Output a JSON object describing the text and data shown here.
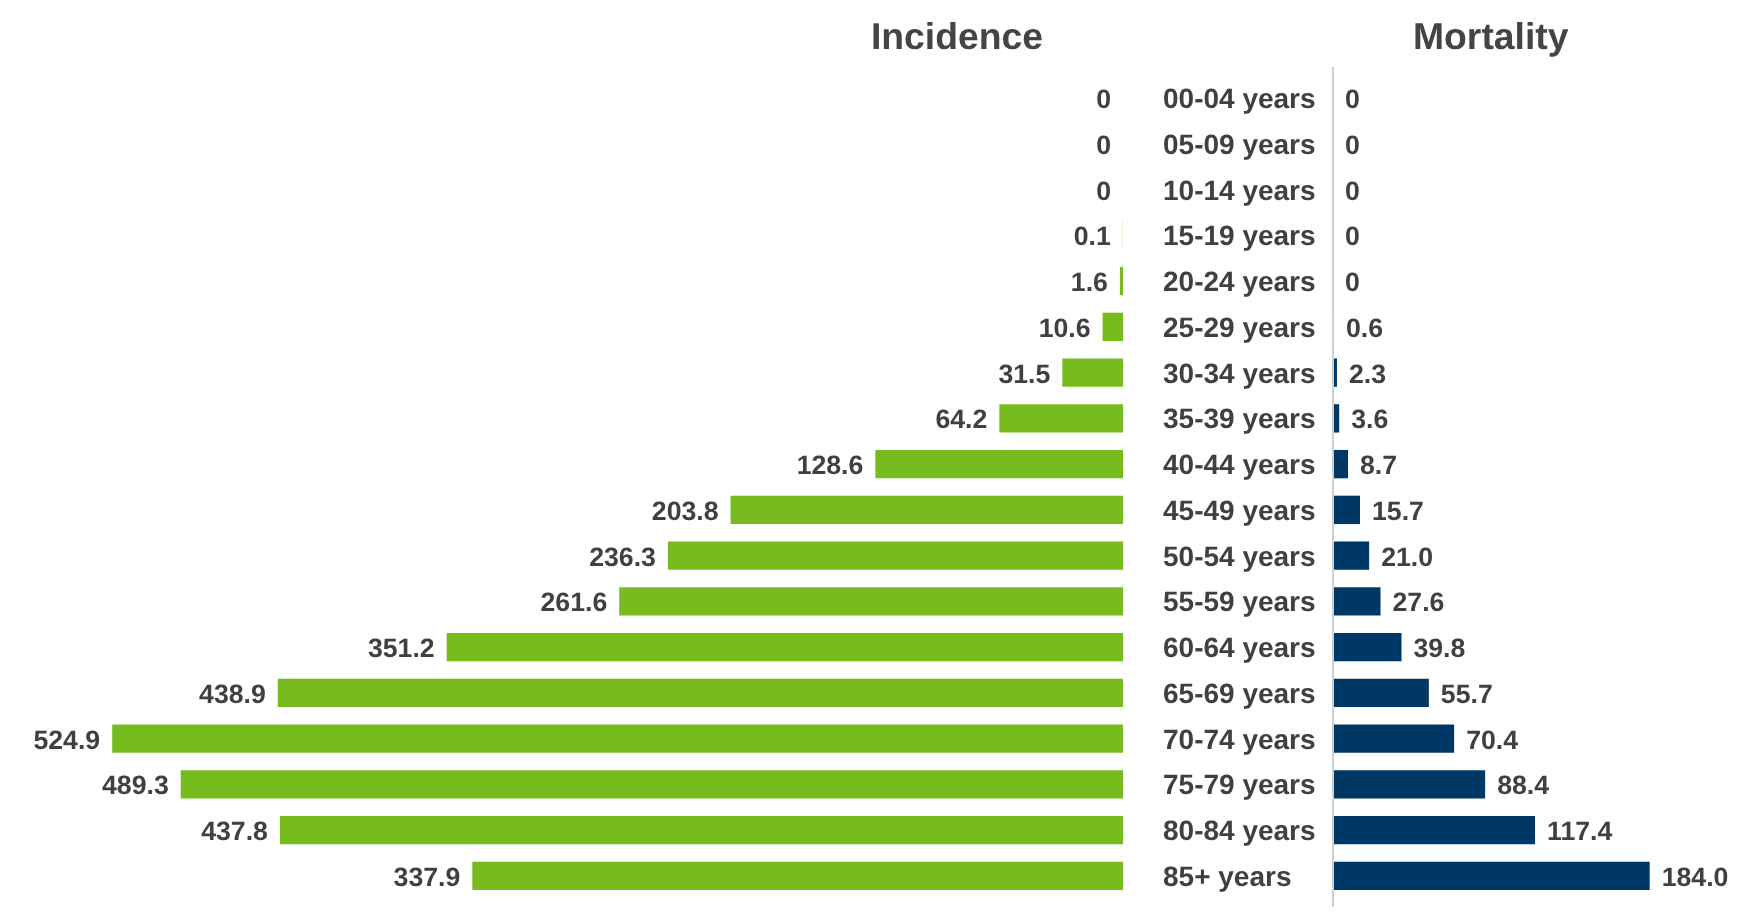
{
  "chart_data": [
    {
      "type": "bar",
      "orientation": "horizontal",
      "title": "Incidence",
      "categories": [
        "00-04 years",
        "05-09 years",
        "10-14 years",
        "15-19 years",
        "20-24 years",
        "25-29 years",
        "30-34 years",
        "35-39 years",
        "40-44 years",
        "45-49 years",
        "50-54 years",
        "55-59 years",
        "60-64 years",
        "65-69 years",
        "70-74 years",
        "75-79 years",
        "80-84 years",
        "85+ years"
      ],
      "values": [
        0,
        0,
        0,
        0.1,
        1.6,
        10.6,
        31.5,
        64.2,
        128.6,
        203.8,
        236.3,
        261.6,
        351.2,
        438.9,
        524.9,
        489.3,
        437.8,
        337.9
      ],
      "color": "#77bc1f",
      "tick_labels": "y",
      "data_labels": true
    },
    {
      "type": "bar",
      "orientation": "horizontal",
      "title": "Mortality",
      "categories": [
        null,
        null,
        null,
        null,
        null,
        null,
        null,
        null,
        null,
        null,
        null,
        null,
        null,
        null,
        null,
        null,
        null,
        null
      ],
      "values": [
        0,
        0,
        0,
        0,
        0,
        0.6,
        2.3,
        3.6,
        8.7,
        15.7,
        21.0,
        27.6,
        39.8,
        55.7,
        70.4,
        88.4,
        117.4,
        184.0
      ],
      "value_labels": [
        "0",
        "0",
        "0",
        "0",
        "0",
        "0.6",
        "2.3",
        "3.6",
        "8.7",
        "15.7",
        "21.0",
        "27.6",
        "39.8",
        "55.7",
        "70.4",
        "88.4",
        "117.4",
        "184.0"
      ],
      "color": "#003865",
      "tick_labels": false
    }
  ]
}
